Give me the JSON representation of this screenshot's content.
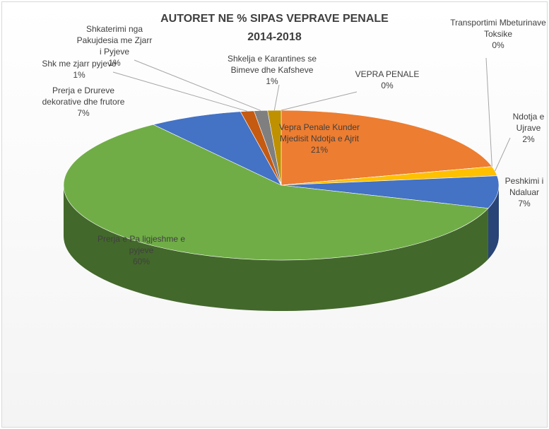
{
  "chart_data": {
    "type": "pie",
    "title": "AUTORET NE % SIPAS VEPRAVE PENALE",
    "subtitle": "2014-2018",
    "categories": [
      "VEPRA PENALE",
      "Vepra Penale Kunder Mjedisit Ndotja e Ajrit",
      "Transportimi Mbeturinave Toksike",
      "Ndotja e Ujrave",
      "Peshkimi i Ndaluar",
      "Prerja e Pa ligjeshme e pyjeve",
      "Prerja e Drureve dekorative dhe frutore",
      "Shk me zjarr pyjeve",
      "Shkaterimi nga Pakujdesia me Zjarr i Pyjeve",
      "Shkelja e Karantines se Bimeve dhe Kafsheve"
    ],
    "values": [
      0,
      21,
      0,
      2,
      7,
      60,
      7,
      1,
      1,
      1
    ],
    "value_labels": [
      "0%",
      "21%",
      "0%",
      "2%",
      "7%",
      "60%",
      "7%",
      "1%",
      "1%",
      "1%"
    ],
    "colors": [
      "#5b9bd5",
      "#ed7d31",
      "#a5a5a5",
      "#ffc000",
      "#4472c4",
      "#70ad47",
      "#4472c4",
      "#c55a11",
      "#7f7f7f",
      "#bf9000"
    ]
  }
}
